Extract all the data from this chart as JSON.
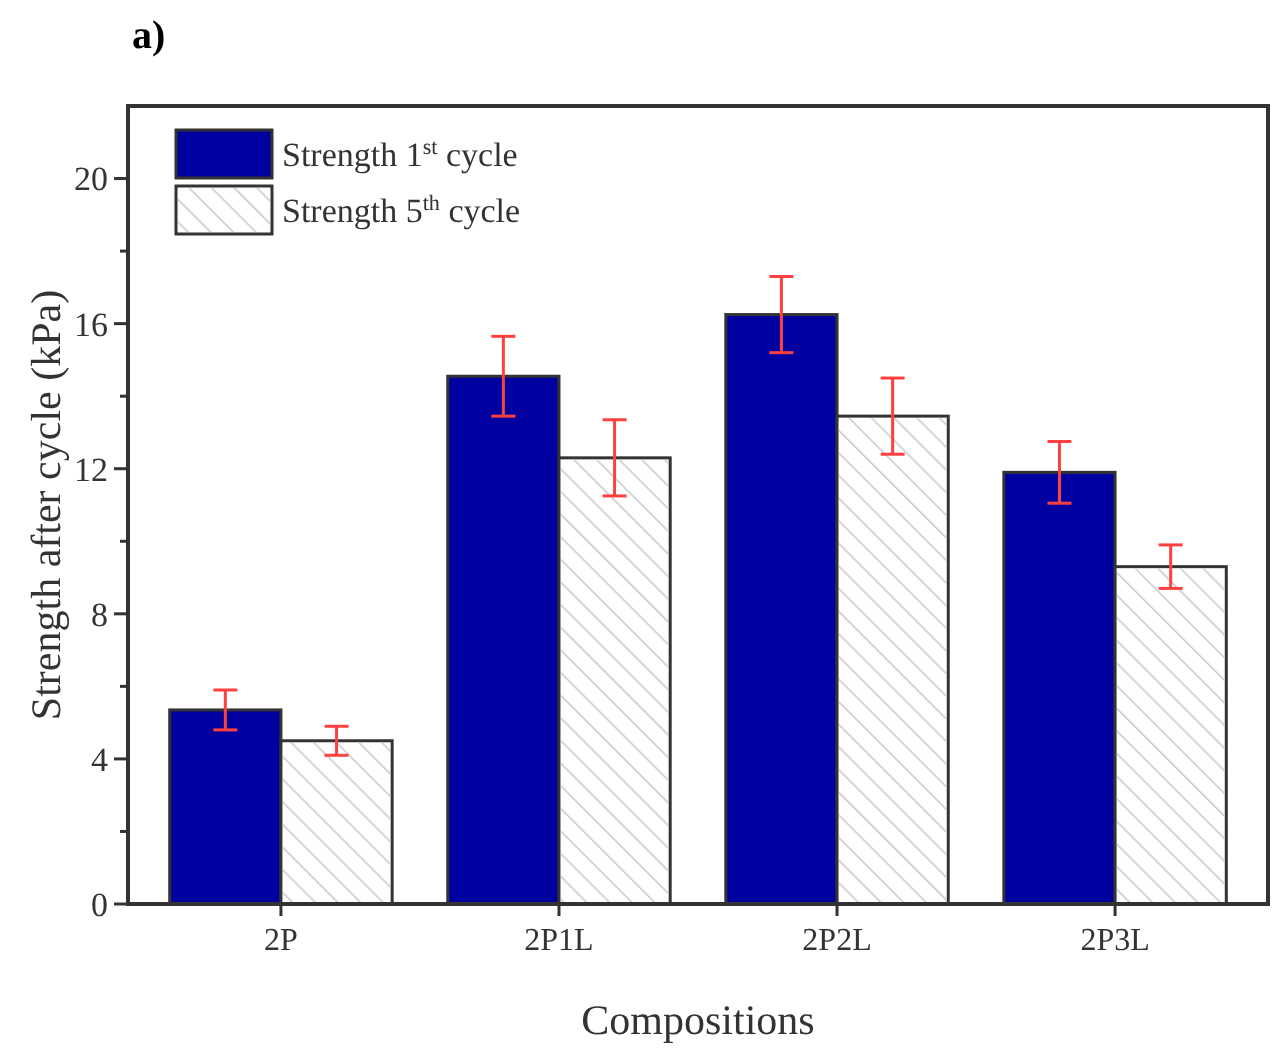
{
  "chart_data": {
    "type": "bar",
    "title": "a)",
    "xlabel": "Compositions",
    "ylabel": "Strength after cycle (kPa)",
    "categories": [
      "2P",
      "2P1L",
      "2P2L",
      "2P3L"
    ],
    "series": [
      {
        "name": "Strength 1$^{st}$ cycle",
        "color": "#0000a0",
        "values": [
          5.35,
          14.55,
          16.25,
          11.9
        ],
        "errors": [
          0.55,
          1.1,
          1.05,
          0.85
        ]
      },
      {
        "name": "Strength 5$^{th}$ cycle",
        "color": "#ffffff",
        "values": [
          4.5,
          12.3,
          13.45,
          9.3
        ],
        "errors": [
          0.4,
          1.05,
          1.05,
          0.6
        ]
      }
    ],
    "ylim": [
      0,
      22
    ],
    "yticks": [
      0,
      {
        "value": 2,
        "label": null
      },
      4,
      {
        "value": 6,
        "label": null
      },
      8,
      {
        "value": 10,
        "label": null
      },
      12,
      {
        "value": 14,
        "label": null
      },
      16,
      {
        "value": 18,
        "label": null
      },
      20
    ],
    "legend": "top left",
    "grid": false
  }
}
